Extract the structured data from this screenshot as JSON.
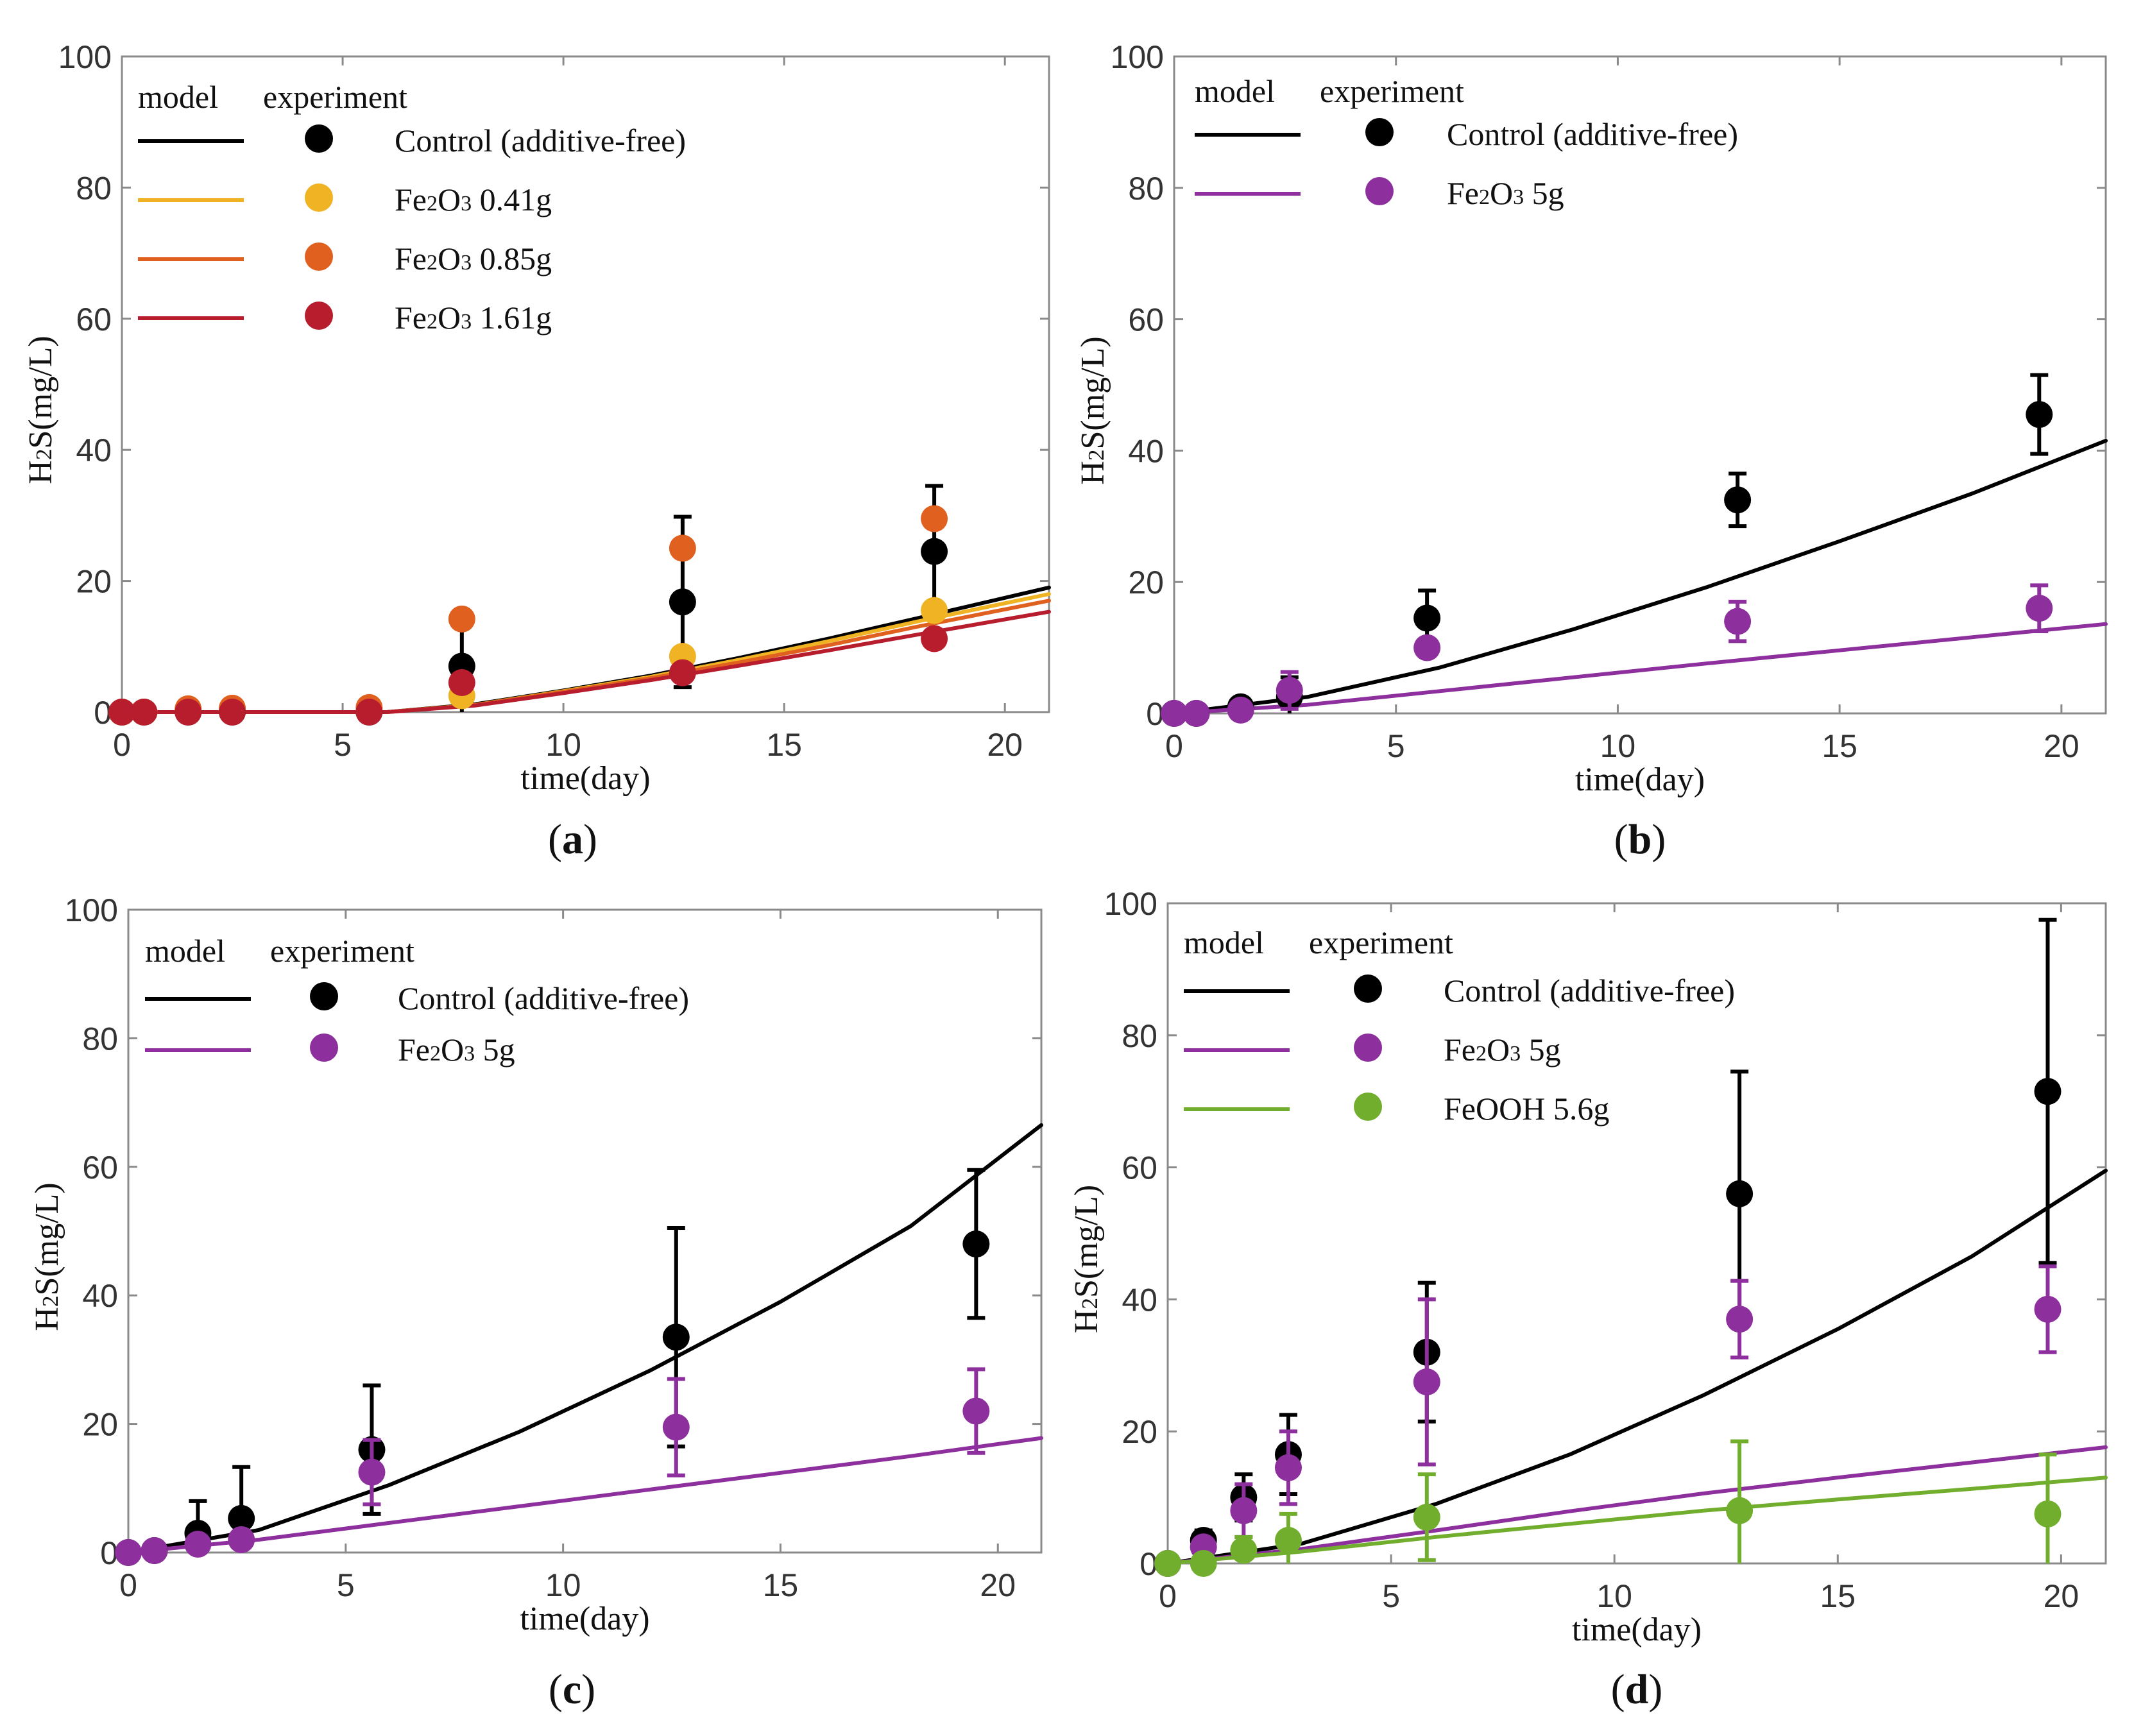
{
  "legend_headers": {
    "model": "model",
    "experiment": "experiment"
  },
  "chart_data": [
    {
      "id": "a",
      "label": "a",
      "type": "line+scatter",
      "xlabel": "time(day)",
      "ylabel": "H2S(mg/L)",
      "xlim": [
        0,
        21
      ],
      "ylim": [
        0,
        100
      ],
      "xticks": [
        0,
        5,
        10,
        15,
        20
      ],
      "yticks": [
        0,
        20,
        40,
        60,
        80,
        100
      ],
      "series": [
        {
          "name": "Control (additive-free)",
          "color": "#000000",
          "model": {
            "x": [
              0,
              6,
              8,
              10,
              12,
              14,
              16,
              18,
              21
            ],
            "y": [
              0,
              0,
              1.2,
              3.3,
              5.6,
              8.3,
              11.2,
              14.3,
              19
            ]
          },
          "points": {
            "x": [
              0,
              0.5,
              1.5,
              2.5,
              5.6,
              7.7,
              12.7,
              18.4
            ],
            "y": [
              0,
              0,
              0,
              0,
              0,
              7,
              16.8,
              24.5
            ],
            "err": [
              0,
              0,
              0,
              0,
              0,
              7,
              13,
              10
            ]
          }
        },
        {
          "name": "Fe2O3 0.41g",
          "color": "#F0B323",
          "model": {
            "x": [
              0,
              6,
              8,
              10,
              12,
              14,
              16,
              18,
              21
            ],
            "y": [
              0,
              0,
              1.1,
              3.2,
              5.4,
              8,
              10.8,
              13.8,
              18
            ]
          },
          "points": {
            "x": [
              0,
              0.5,
              1.5,
              2.5,
              5.6,
              7.7,
              12.7,
              18.4
            ],
            "y": [
              0,
              0,
              0.3,
              0.5,
              0.5,
              2.5,
              8.5,
              15.5
            ],
            "err": [
              0,
              0,
              0,
              0,
              0,
              0,
              0,
              0
            ]
          }
        },
        {
          "name": "Fe2O3 0.85g",
          "color": "#E06020",
          "model": {
            "x": [
              0,
              6,
              8,
              10,
              12,
              14,
              16,
              18,
              21
            ],
            "y": [
              0,
              0,
              1.1,
              3.1,
              5.2,
              7.6,
              10.2,
              13,
              17
            ]
          },
          "points": {
            "x": [
              0,
              0.5,
              1.5,
              2.5,
              5.6,
              7.7,
              12.7,
              18.4
            ],
            "y": [
              0,
              0,
              0.5,
              0.6,
              0.7,
              14.2,
              25,
              29.5
            ],
            "err": [
              0,
              0,
              0,
              0,
              0,
              0,
              0,
              0
            ]
          }
        },
        {
          "name": "Fe2O3 1.61g",
          "color": "#B81D2E",
          "model": {
            "x": [
              0,
              6,
              8,
              10,
              12,
              14,
              16,
              18,
              21
            ],
            "y": [
              0,
              0,
              1,
              2.9,
              4.9,
              7.1,
              9.4,
              11.8,
              15.3
            ]
          },
          "points": {
            "x": [
              0,
              0.5,
              1.5,
              2.5,
              5.6,
              7.7,
              12.7,
              18.4
            ],
            "y": [
              0,
              0,
              0,
              0,
              0,
              4.5,
              6,
              11.2
            ],
            "err": [
              0,
              0,
              0,
              0,
              0,
              0,
              0,
              0
            ]
          }
        }
      ]
    },
    {
      "id": "b",
      "label": "b",
      "type": "line+scatter",
      "xlabel": "time(day)",
      "ylabel": "H2S(mg/L)",
      "xlim": [
        0,
        21
      ],
      "ylim": [
        0,
        100
      ],
      "xticks": [
        0,
        5,
        10,
        15,
        20
      ],
      "yticks": [
        0,
        20,
        40,
        60,
        80,
        100
      ],
      "series": [
        {
          "name": "Control (additive-free)",
          "color": "#000000",
          "model": {
            "x": [
              0,
              3,
              6,
              9,
              12,
              15,
              18,
              21
            ],
            "y": [
              0,
              2.5,
              7,
              12.8,
              19.2,
              26.2,
              33.5,
              41.5
            ]
          },
          "points": {
            "x": [
              0,
              0.5,
              1.5,
              2.6,
              5.7,
              12.7,
              19.5
            ],
            "y": [
              0,
              0,
              1,
              2.5,
              14.5,
              32.5,
              45.5
            ],
            "err": [
              0,
              0,
              1,
              3,
              4.2,
              4,
              6
            ]
          }
        },
        {
          "name": "Fe2O3 5g",
          "color": "#8E2F9E",
          "model": {
            "x": [
              0,
              3,
              6,
              9,
              12,
              15,
              18,
              21
            ],
            "y": [
              0,
              1.3,
              3.4,
              5.5,
              7.6,
              9.6,
              11.6,
              13.6
            ]
          },
          "points": {
            "x": [
              0,
              0.5,
              1.5,
              2.6,
              5.7,
              12.7,
              19.5
            ],
            "y": [
              0,
              0,
              0.5,
              3.5,
              10,
              14,
              16
            ],
            "err": [
              0,
              0,
              0,
              2.8,
              0,
              3,
              3.5
            ]
          }
        }
      ]
    },
    {
      "id": "c",
      "label": "c",
      "type": "line+scatter",
      "xlabel": "time(day)",
      "ylabel": "H2S(mg/L)",
      "xlim": [
        0,
        21
      ],
      "ylim": [
        0,
        100
      ],
      "xticks": [
        0,
        5,
        10,
        15,
        20
      ],
      "yticks": [
        0,
        20,
        40,
        60,
        80,
        100
      ],
      "series": [
        {
          "name": "Control (additive-free)",
          "color": "#000000",
          "model": {
            "x": [
              0,
              3,
              6,
              9,
              12,
              15,
              18,
              21
            ],
            "y": [
              0,
              3.5,
              10.5,
              18.8,
              28.3,
              39,
              50.8,
              66.5
            ]
          },
          "points": {
            "x": [
              0,
              0.6,
              1.6,
              2.6,
              5.6,
              12.6,
              19.5
            ],
            "y": [
              0,
              0.3,
              3,
              5.3,
              16,
              33.5,
              48
            ],
            "err": [
              0,
              0,
              5,
              8,
              10,
              17,
              11.5
            ]
          }
        },
        {
          "name": "Fe2O3 5g",
          "color": "#8E2F9E",
          "model": {
            "x": [
              0,
              3,
              6,
              9,
              12,
              15,
              18,
              21
            ],
            "y": [
              0,
              2,
              4.6,
              7.2,
              9.8,
              12.4,
              15,
              17.8
            ]
          },
          "points": {
            "x": [
              0,
              0.6,
              1.6,
              2.6,
              5.6,
              12.6,
              19.5
            ],
            "y": [
              0,
              0.3,
              1.3,
              2,
              12.5,
              19.5,
              22
            ],
            "err": [
              0,
              0,
              0,
              0,
              5,
              7.5,
              6.5
            ]
          }
        }
      ]
    },
    {
      "id": "d",
      "label": "d",
      "type": "line+scatter",
      "xlabel": "time(day)",
      "ylabel": "H2S(mg/L)",
      "xlim": [
        0,
        21
      ],
      "ylim": [
        0,
        100
      ],
      "xticks": [
        0,
        5,
        10,
        15,
        20
      ],
      "yticks": [
        0,
        20,
        40,
        60,
        80,
        100
      ],
      "series": [
        {
          "name": "Control (additive-free)",
          "color": "#000000",
          "model": {
            "x": [
              0,
              3,
              6,
              9,
              12,
              15,
              18,
              21
            ],
            "y": [
              0,
              3,
              9,
              16.5,
              25.5,
              35.5,
              46.5,
              59.5
            ]
          },
          "points": {
            "x": [
              0,
              0.8,
              1.7,
              2.7,
              5.8,
              12.8,
              19.7
            ],
            "y": [
              0,
              3.5,
              10,
              16.5,
              32,
              56,
              71.5
            ],
            "err": [
              0,
              1.5,
              3.5,
              6,
              10.5,
              18.5,
              26
            ]
          }
        },
        {
          "name": "Fe2O3 5g",
          "color": "#8E2F9E",
          "model": {
            "x": [
              0,
              3,
              6,
              9,
              12,
              15,
              18,
              21
            ],
            "y": [
              0,
              2.2,
              5,
              7.9,
              10.6,
              13,
              15.3,
              17.6
            ]
          },
          "points": {
            "x": [
              0,
              0.8,
              1.7,
              2.7,
              5.8,
              12.8,
              19.7
            ],
            "y": [
              0,
              2.5,
              8,
              14.5,
              27.5,
              37,
              38.5
            ],
            "err": [
              0,
              1,
              4,
              5.5,
              12.5,
              5.8,
              6.5
            ]
          }
        },
        {
          "name": "FeOOH 5.6g",
          "color": "#72AE2E",
          "model": {
            "x": [
              0,
              3,
              6,
              9,
              12,
              15,
              18,
              21
            ],
            "y": [
              0,
              1.8,
              4,
              6,
              8,
              9.7,
              11.3,
              13
            ]
          },
          "points": {
            "x": [
              0,
              0.8,
              1.7,
              2.7,
              5.8,
              12.8,
              19.7
            ],
            "y": [
              0,
              0,
              2,
              3.5,
              7,
              8,
              7.5
            ],
            "err": [
              0,
              0,
              2,
              4,
              6.5,
              10.5,
              9
            ]
          }
        }
      ]
    }
  ]
}
